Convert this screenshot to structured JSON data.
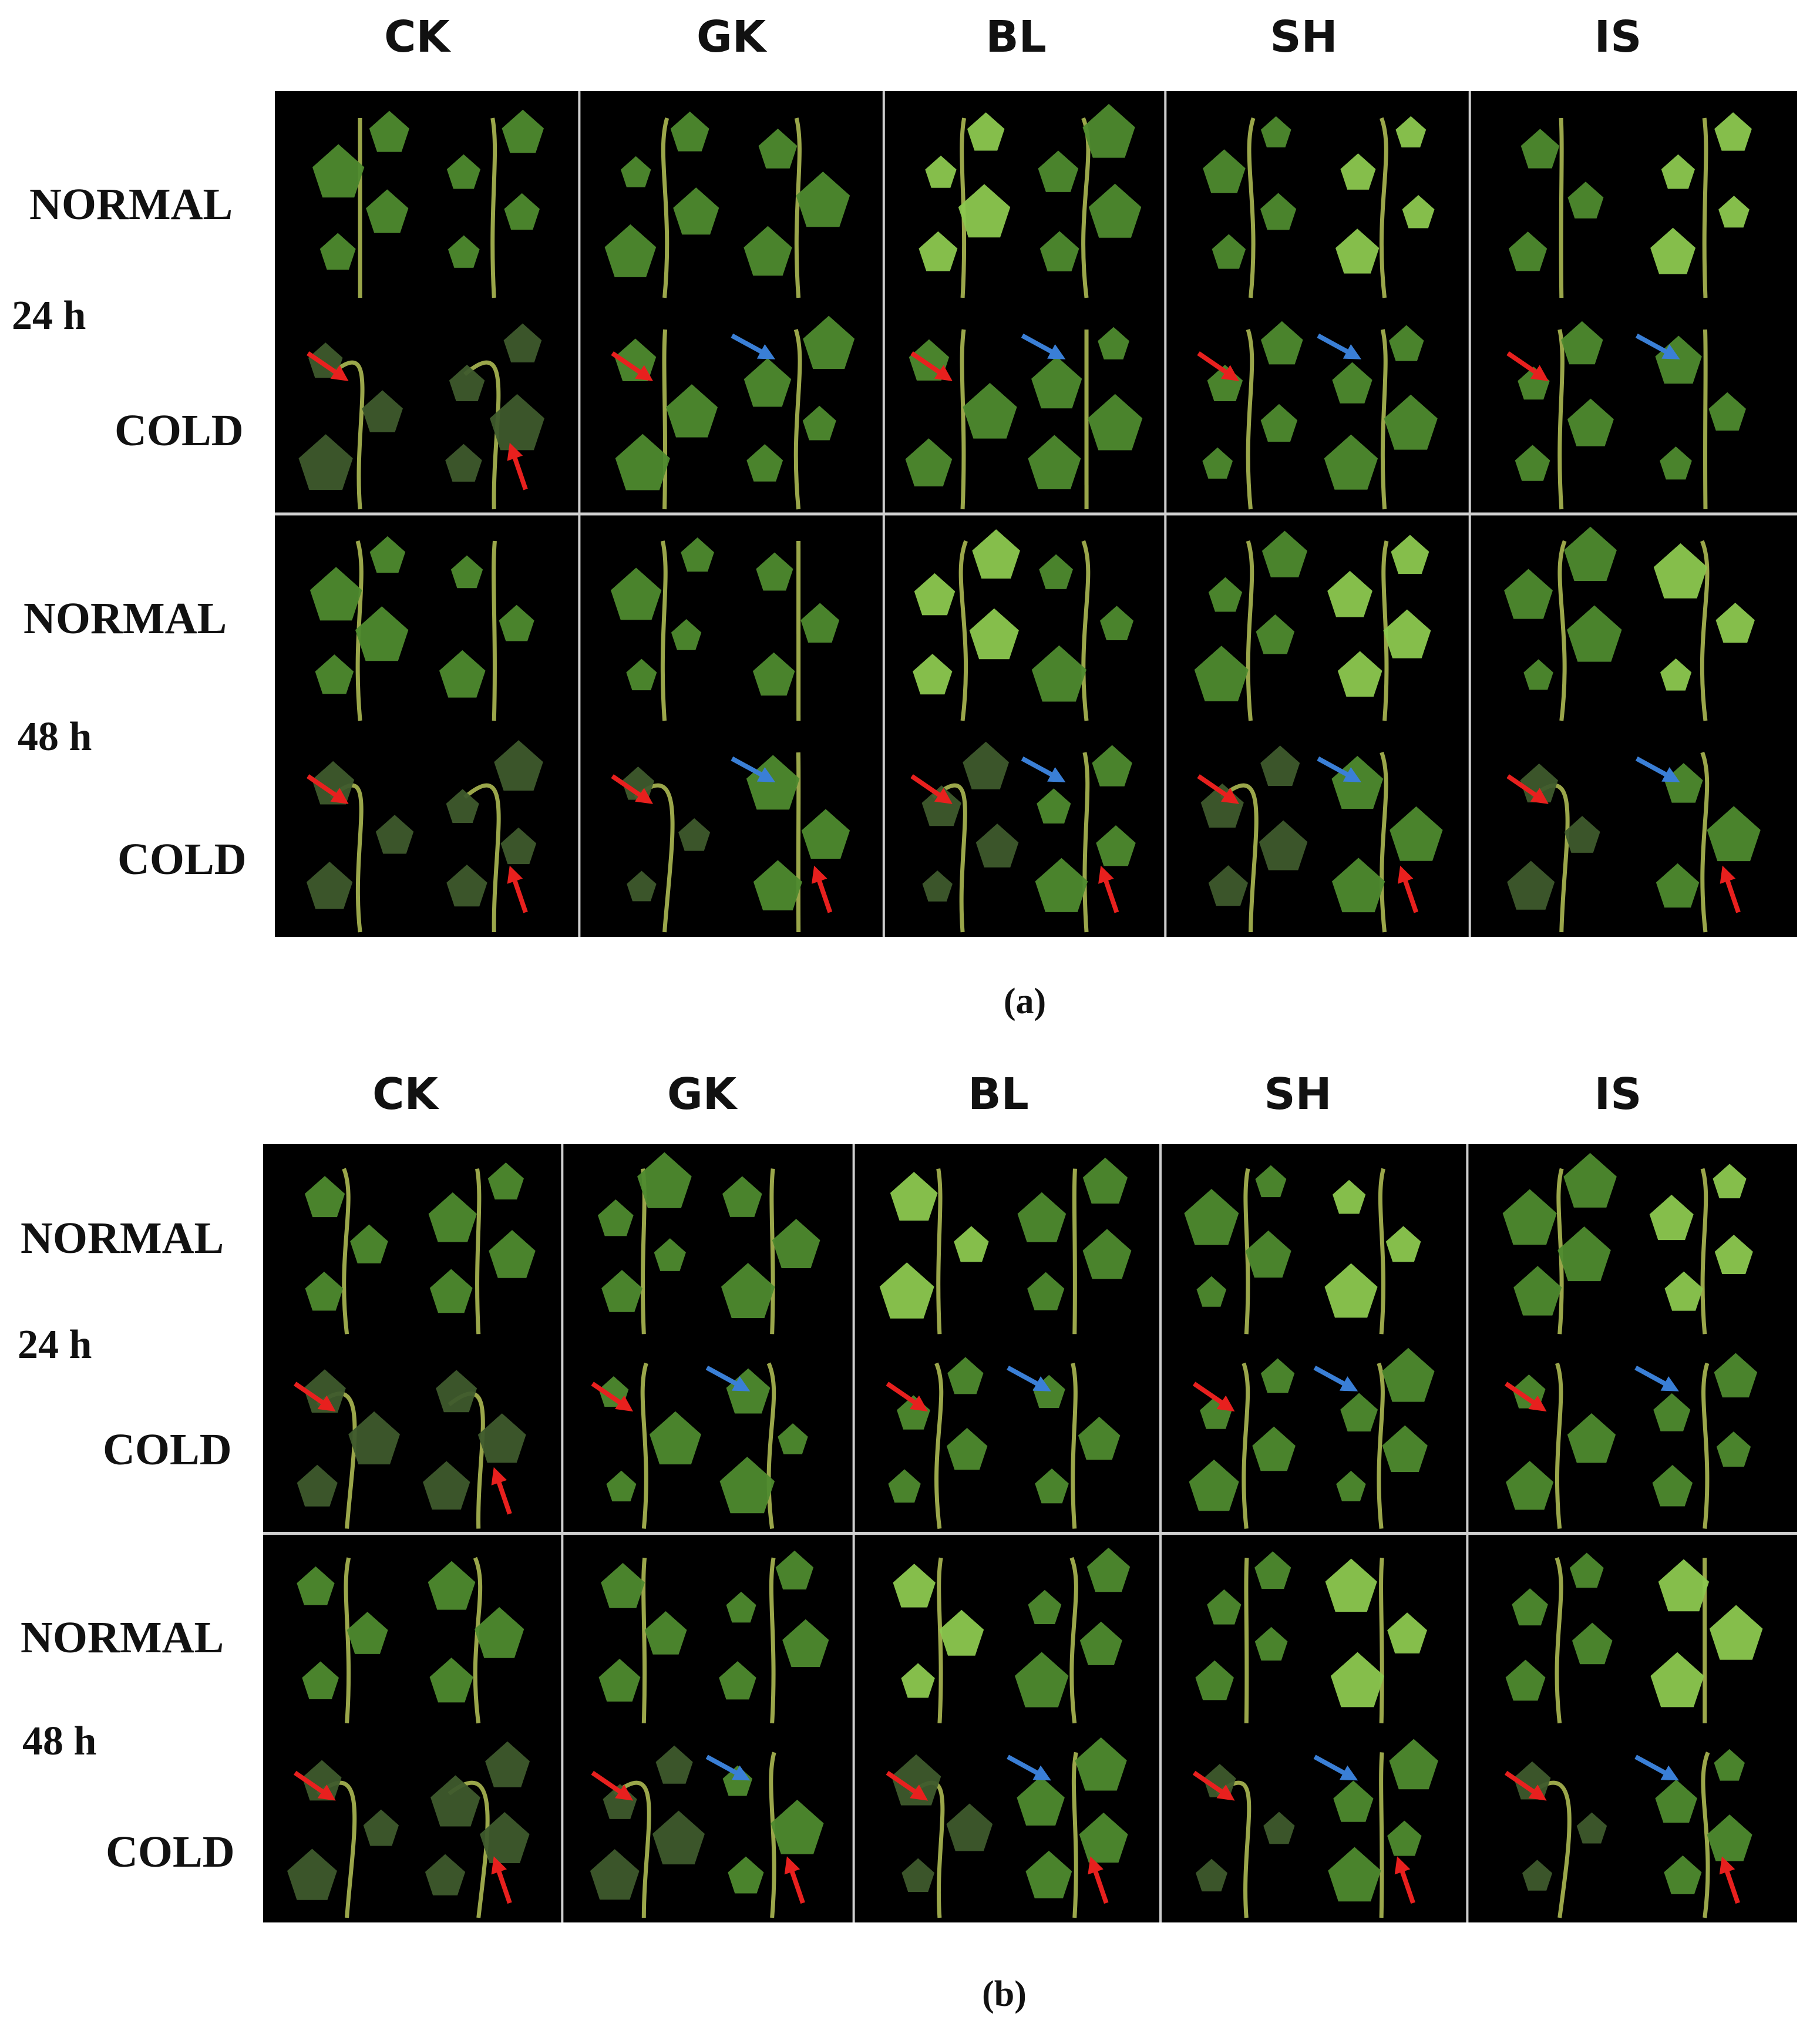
{
  "panels": [
    {
      "id": "a",
      "caption": "(a)",
      "columns": [
        "CK",
        "GK",
        "BL",
        "SH",
        "IS"
      ],
      "blocks": [
        {
          "time": "24 h",
          "rows": [
            "NORMAL",
            "COLD"
          ]
        },
        {
          "time": "48 h",
          "rows": [
            "NORMAL",
            "COLD"
          ]
        }
      ]
    },
    {
      "id": "b",
      "caption": "(b)",
      "columns": [
        "CK",
        "GK",
        "BL",
        "SH",
        "IS"
      ],
      "blocks": [
        {
          "time": "24 h",
          "rows": [
            "NORMAL",
            "COLD"
          ]
        },
        {
          "time": "48 h",
          "rows": [
            "NORMAL",
            "COLD"
          ]
        }
      ]
    }
  ],
  "colors": {
    "background": "#000000",
    "divider": "#cfcfcf",
    "leaf": "#4e8a2e",
    "leaf_light": "#8cc84f",
    "stem": "#9aa64a",
    "damage_arrow": "#e8201e",
    "recovery_arrow": "#3a7fd6"
  }
}
